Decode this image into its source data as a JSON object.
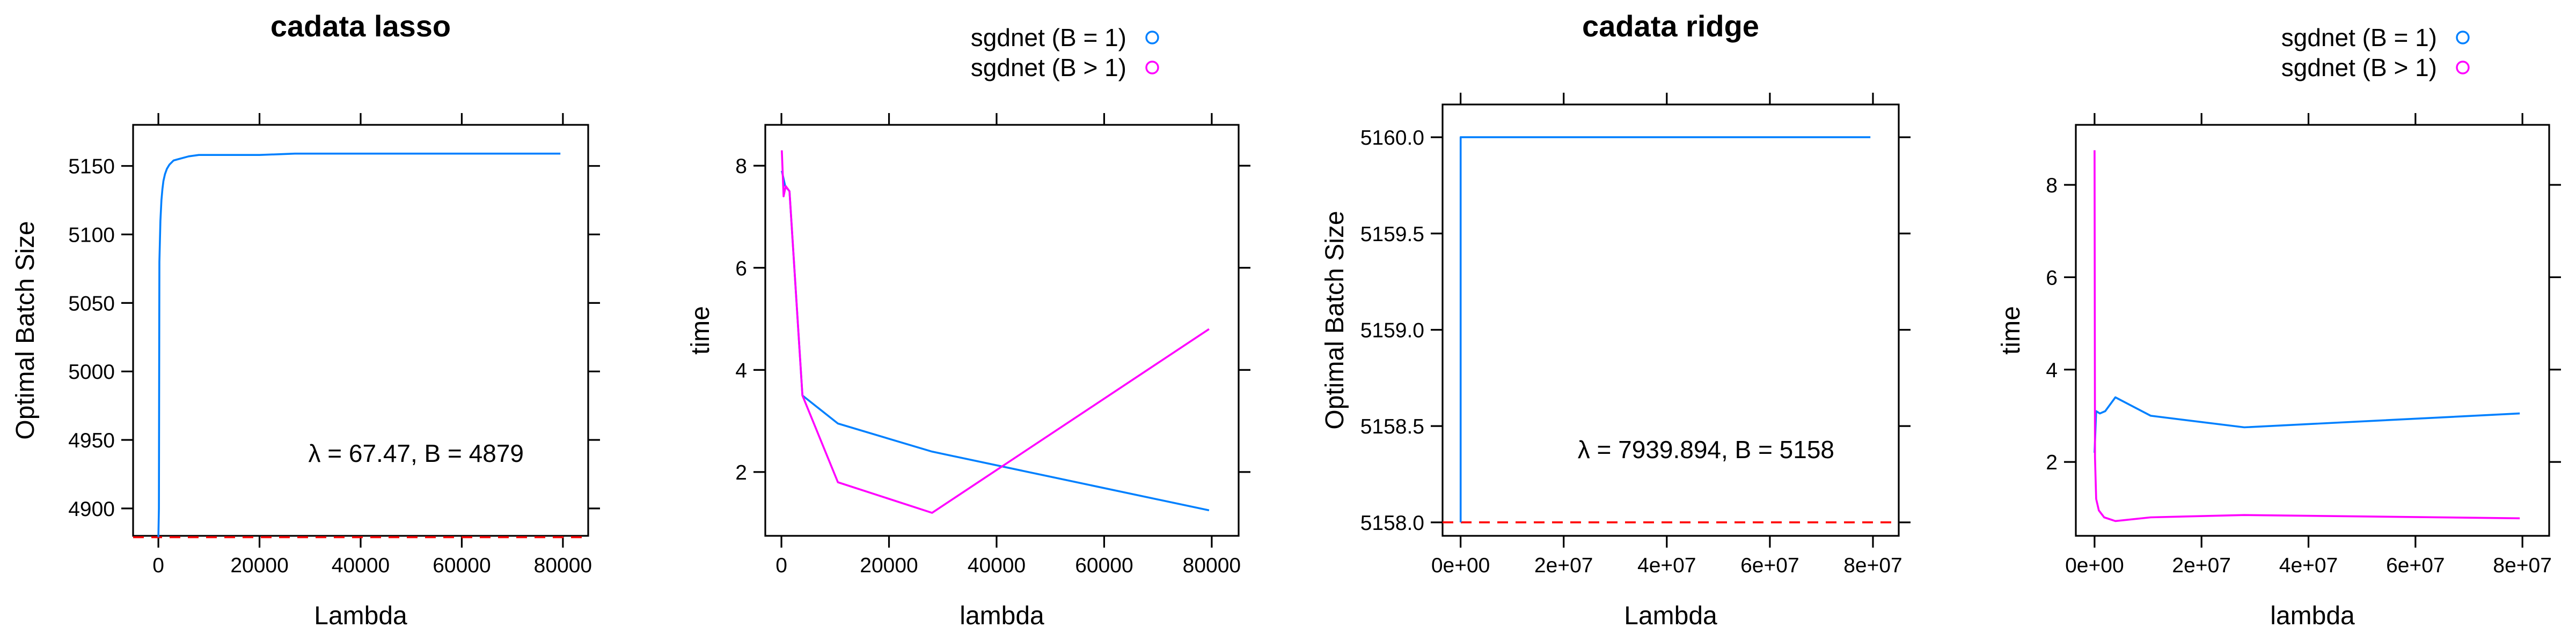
{
  "colors": {
    "blue": "#0080ff",
    "magenta": "#ff00ff",
    "red": "#ff0000"
  },
  "chart_data": [
    {
      "type": "line",
      "title": "cadata lasso",
      "xlabel": "Lambda",
      "ylabel": "Optimal Batch Size",
      "xlim": [
        -5000,
        85000
      ],
      "ylim": [
        4880,
        5180
      ],
      "x_ticks": [
        0,
        20000,
        40000,
        60000,
        80000
      ],
      "x_tick_labels": [
        "0",
        "20000",
        "40000",
        "60000",
        "80000"
      ],
      "y_ticks": [
        4900,
        4950,
        5000,
        5050,
        5100,
        5150
      ],
      "y_tick_labels": [
        "4900",
        "4950",
        "5000",
        "5050",
        "5100",
        "5150"
      ],
      "series": [
        {
          "color": "blue",
          "x": [
            0,
            100,
            200,
            400,
            600,
            800,
            1000,
            1300,
            1700,
            2200,
            3000,
            4000,
            6000,
            8000,
            10000,
            15000,
            20000,
            27000,
            40000,
            60000,
            79500
          ],
          "y": [
            4879,
            4900,
            5080,
            5110,
            5125,
            5133,
            5139,
            5144,
            5148,
            5151,
            5154,
            5155,
            5157,
            5158,
            5158,
            5158,
            5158,
            5159,
            5159,
            5159,
            5159
          ]
        }
      ],
      "reference_line": {
        "y": 4879,
        "color": "red",
        "style": "dashed"
      },
      "annotation": "λ = 67.47, B = 4879"
    },
    {
      "type": "line",
      "xlabel": "lambda",
      "ylabel": "time",
      "xlim": [
        -3000,
        85000
      ],
      "ylim": [
        0.75,
        8.8
      ],
      "x_ticks": [
        0,
        20000,
        40000,
        60000,
        80000
      ],
      "x_tick_labels": [
        "0",
        "20000",
        "40000",
        "60000",
        "80000"
      ],
      "y_ticks": [
        2,
        4,
        6,
        8
      ],
      "y_tick_labels": [
        "2",
        "4",
        "6",
        "8"
      ],
      "legend": [
        {
          "label": "sgdnet (B = 1)",
          "color": "blue"
        },
        {
          "label": "sgdnet (B > 1)",
          "color": "magenta"
        }
      ],
      "series": [
        {
          "name": "sgdnet (B = 1)",
          "color": "blue",
          "x": [
            70,
            700,
            1500,
            3900,
            10500,
            28000,
            79500
          ],
          "y": [
            7.9,
            7.6,
            7.5,
            3.5,
            2.95,
            2.4,
            1.25
          ]
        },
        {
          "name": "sgdnet (B > 1)",
          "color": "magenta",
          "x": [
            70,
            400,
            800,
            1500,
            3900,
            10500,
            28000,
            79500
          ],
          "y": [
            8.3,
            7.4,
            7.6,
            7.5,
            3.5,
            1.8,
            1.2,
            4.8
          ]
        }
      ]
    },
    {
      "type": "line",
      "title": "cadata ridge",
      "xlabel": "Lambda",
      "ylabel": "Optimal Batch Size",
      "xlim": [
        -3500000,
        85000000
      ],
      "ylim": [
        5157.93,
        5160.17
      ],
      "x_ticks": [
        0,
        20000000,
        40000000,
        60000000,
        80000000
      ],
      "x_tick_labels": [
        "0e+00",
        "2e+07",
        "4e+07",
        "6e+07",
        "8e+07"
      ],
      "y_ticks": [
        5158.0,
        5158.5,
        5159.0,
        5159.5,
        5160.0
      ],
      "y_tick_labels": [
        "5158.0",
        "5158.5",
        "5159.0",
        "5159.5",
        "5160.0"
      ],
      "series": [
        {
          "color": "blue",
          "x": [
            7939.894,
            7939.894,
            200000,
            79500000
          ],
          "y": [
            5158,
            5160,
            5160,
            5160
          ]
        }
      ],
      "reference_line": {
        "y": 5158,
        "color": "red",
        "style": "dashed"
      },
      "annotation": "λ = 7939.894, B = 5158"
    },
    {
      "type": "line",
      "xlabel": "lambda",
      "ylabel": "time",
      "xlim": [
        -3500000,
        85000000
      ],
      "ylim": [
        0.4,
        9.3
      ],
      "x_ticks": [
        0,
        20000000,
        40000000,
        60000000,
        80000000
      ],
      "x_tick_labels": [
        "0e+00",
        "2e+07",
        "4e+07",
        "6e+07",
        "8e+07"
      ],
      "y_ticks": [
        2,
        4,
        6,
        8
      ],
      "y_tick_labels": [
        "2",
        "4",
        "6",
        "8"
      ],
      "legend": [
        {
          "label": "sgdnet (B = 1)",
          "color": "blue"
        },
        {
          "label": "sgdnet (B > 1)",
          "color": "magenta"
        }
      ],
      "series": [
        {
          "name": "sgdnet (B = 1)",
          "color": "blue",
          "x": [
            0,
            300000,
            1000000,
            2000000,
            3900000,
            10500000,
            28000000,
            79500000
          ],
          "y": [
            2.2,
            3.1,
            3.05,
            3.1,
            3.4,
            3.0,
            2.75,
            3.05
          ]
        },
        {
          "name": "sgdnet (B > 1)",
          "color": "magenta",
          "x": [
            0,
            80000,
            300000,
            800000,
            1800000,
            3900000,
            10500000,
            28000000,
            79500000
          ],
          "y": [
            8.75,
            2.1,
            1.2,
            0.95,
            0.8,
            0.72,
            0.8,
            0.85,
            0.78
          ]
        }
      ]
    }
  ]
}
